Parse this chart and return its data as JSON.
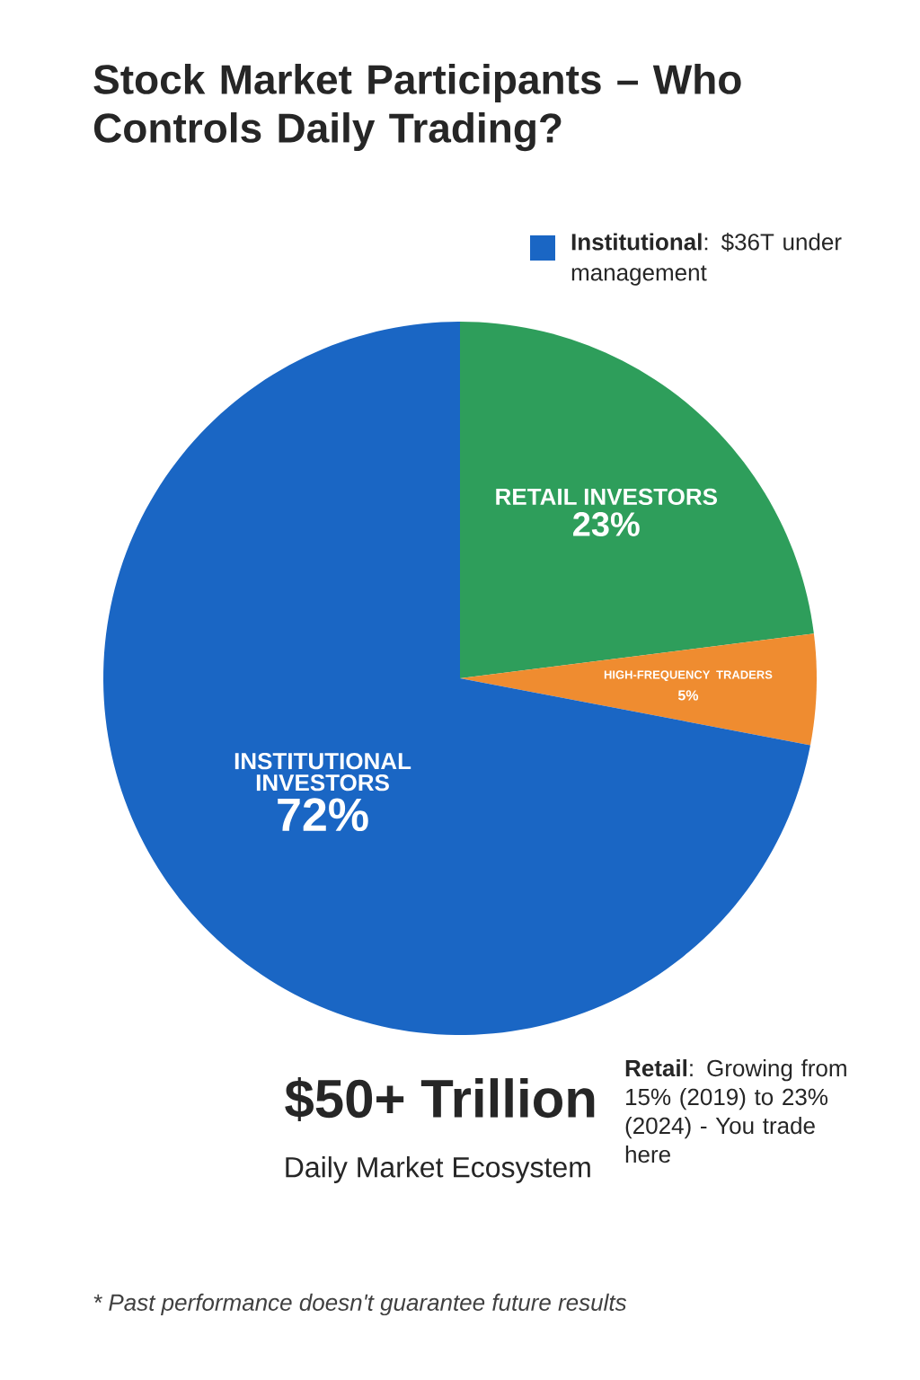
{
  "chart_data": {
    "type": "pie",
    "title": "Stock Market Participants – Who Controls Daily Trading?",
    "categories": [
      "RETAIL INVESTORS",
      "HIGH-FREQUENCY TRADERS",
      "INSTITUTIONAL INVESTORS"
    ],
    "values": [
      23,
      5,
      72
    ],
    "value_labels": [
      "23%",
      "5%",
      "72%"
    ],
    "colors": [
      "#2e9e5b",
      "#ef8c30",
      "#1a66c4"
    ],
    "annotations": [
      "**Institutional**: $36T under management",
      "$50+ Trillion",
      "Daily Market Ecosystem",
      "**Retail**: Growing from 15% (2019) to 23% (2024) - You trade here",
      "* Past performance doesn't guarantee future results"
    ]
  }
}
